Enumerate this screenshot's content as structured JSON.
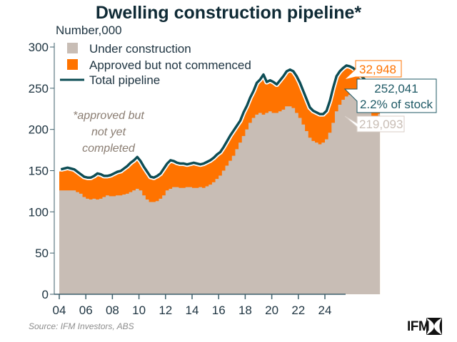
{
  "chart_data": {
    "type": "area",
    "title": "Dwelling construction pipeline*",
    "ylabel": "Number,000",
    "xlabel": "",
    "ylim": [
      0,
      300
    ],
    "yticks": [
      0,
      50,
      100,
      150,
      200,
      250,
      300
    ],
    "xticks": [
      "04",
      "06",
      "08",
      "10",
      "12",
      "14",
      "16",
      "18",
      "20",
      "22",
      "24"
    ],
    "xrange": [
      2004.0,
      2025.25
    ],
    "grid": false,
    "legend_position": "top-left",
    "frequency": "quarterly",
    "x_start": 2004.0,
    "series": [
      {
        "name": "Under construction",
        "kind": "stacked-area",
        "color": "#c8bdb5",
        "values": [
          126,
          126,
          126,
          126,
          126,
          124,
          122,
          118,
          116,
          115,
          116,
          115,
          116,
          118,
          120,
          119,
          119,
          120,
          120,
          121,
          122,
          124,
          126,
          128,
          126,
          120,
          115,
          112,
          112,
          113,
          116,
          120,
          126,
          128,
          130,
          130,
          129,
          129,
          130,
          130,
          129,
          129,
          130,
          129,
          131,
          133,
          136,
          140,
          144,
          150,
          156,
          162,
          168,
          176,
          184,
          192,
          200,
          208,
          214,
          218,
          220,
          218,
          220,
          222,
          220,
          220,
          222,
          224,
          228,
          228,
          226,
          220,
          214,
          206,
          198,
          190,
          186,
          184,
          182,
          184,
          188,
          196,
          208,
          222,
          230,
          236,
          240,
          242,
          240,
          236,
          232,
          228,
          224,
          220,
          216,
          214,
          219
        ]
      },
      {
        "name": "Approved but not commenced",
        "kind": "stacked-area",
        "color": "#ff7300",
        "note": "difference between total pipeline and under construction"
      },
      {
        "name": "Total pipeline",
        "kind": "line",
        "color": "#0d4d55",
        "values": [
          149,
          150,
          151,
          150,
          149,
          146,
          143,
          140,
          139,
          139,
          141,
          144,
          143,
          141,
          141,
          142,
          144,
          146,
          147,
          150,
          153,
          157,
          160,
          164,
          159,
          152,
          146,
          140,
          139,
          141,
          144,
          150,
          156,
          160,
          159,
          157,
          156,
          156,
          155,
          156,
          157,
          156,
          155,
          156,
          158,
          160,
          163,
          167,
          170,
          176,
          183,
          190,
          196,
          202,
          208,
          218,
          226,
          236,
          244,
          254,
          258,
          264,
          255,
          257,
          255,
          252,
          257,
          262,
          268,
          270,
          268,
          262,
          254,
          244,
          234,
          224,
          220,
          218,
          216,
          216,
          220,
          232,
          248,
          262,
          268,
          272,
          275,
          274,
          272,
          268,
          264,
          260,
          256,
          252,
          248,
          246,
          252
        ]
      },
      {
        "name": "Latest values",
        "kind": "annotation",
        "approved_not_commenced": 32948,
        "total_pipeline": 252041,
        "under_construction": 219093
      }
    ],
    "annotations": [
      "*approved but not yet completed",
      "32,948",
      "252,041 2.2% of stock",
      "219,093"
    ]
  },
  "header": {
    "title": "Dwelling construction pipeline*",
    "unit_label": "Number,000"
  },
  "legend": {
    "items": [
      {
        "label": "Under construction",
        "color": "#c8bdb5",
        "shape": "square"
      },
      {
        "label": "Approved but not commenced",
        "color": "#ff7300",
        "shape": "square"
      },
      {
        "label": "Total pipeline",
        "color": "#0d4d55",
        "shape": "line"
      }
    ]
  },
  "note": {
    "lines": [
      "*approved but",
      "not yet",
      "completed"
    ]
  },
  "callouts": {
    "approved": {
      "text": "32,948",
      "color": "#ff7300"
    },
    "total": {
      "line1": "252,041",
      "line2": "2.2% of stock",
      "color": "#1f5a66"
    },
    "under": {
      "text": "219,093",
      "color": "#c8bdb5"
    }
  },
  "footer": {
    "source": "Source: IFM Investors, ABS",
    "logo_text": "IFM"
  }
}
